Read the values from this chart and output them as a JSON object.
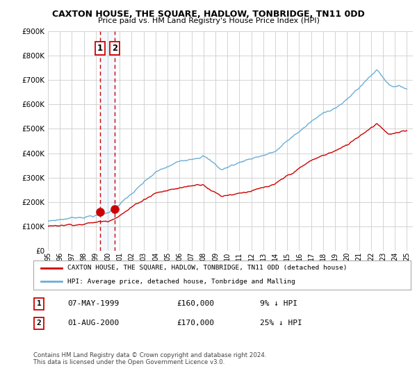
{
  "title": "CAXTON HOUSE, THE SQUARE, HADLOW, TONBRIDGE, TN11 0DD",
  "subtitle": "Price paid vs. HM Land Registry's House Price Index (HPI)",
  "ylim": [
    0,
    900000
  ],
  "yticks": [
    0,
    100000,
    200000,
    300000,
    400000,
    500000,
    600000,
    700000,
    800000,
    900000
  ],
  "xlim_start": 1995.0,
  "xlim_end": 2025.5,
  "hpi_color": "#6baed6",
  "price_color": "#cc0000",
  "transaction1_date": 1999.35,
  "transaction1_price": 160000,
  "transaction2_date": 2000.58,
  "transaction2_price": 170000,
  "legend_line1": "CAXTON HOUSE, THE SQUARE, HADLOW, TONBRIDGE, TN11 0DD (detached house)",
  "legend_line2": "HPI: Average price, detached house, Tonbridge and Malling",
  "table_row1": [
    "1",
    "07-MAY-1999",
    "£160,000",
    "9% ↓ HPI"
  ],
  "table_row2": [
    "2",
    "01-AUG-2000",
    "£170,000",
    "25% ↓ HPI"
  ],
  "footnote": "Contains HM Land Registry data © Crown copyright and database right 2024.\nThis data is licensed under the Open Government Licence v3.0.",
  "background_color": "#ffffff",
  "grid_color": "#cccccc"
}
